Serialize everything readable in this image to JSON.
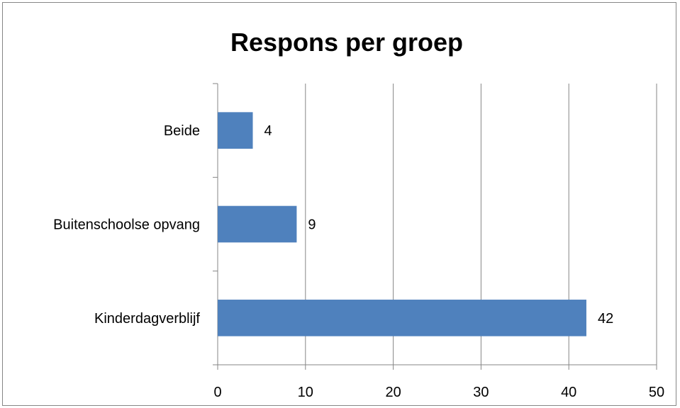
{
  "chart_data": {
    "type": "bar",
    "orientation": "horizontal",
    "title": "Respons per groep",
    "xlabel": "",
    "ylabel": "",
    "categories": [
      "Kinderdagverblijf",
      "Buitenschoolse opvang",
      "Beide"
    ],
    "values": [
      42,
      9,
      4
    ],
    "data_labels": [
      "42",
      "9",
      "4"
    ],
    "xlim": [
      0,
      50
    ],
    "x_ticks": [
      0,
      10,
      20,
      30,
      40,
      50
    ],
    "x_tick_labels": [
      "0",
      "10",
      "20",
      "30",
      "40",
      "50"
    ],
    "grid": "vertical",
    "legend": "none",
    "bar_color": "#4F81BD",
    "gridline_color": "#868686"
  }
}
